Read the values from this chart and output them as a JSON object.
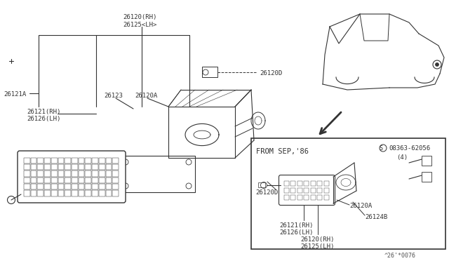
{
  "bg_color": "#ffffff",
  "line_color": "#333333",
  "text_color": "#333333",
  "footer_text": "^26'*0076",
  "labels": {
    "top_combo": "26120(RH)\n26125<LH>",
    "part_26121A": "26121A",
    "part_26121_rh": "26121(RH)",
    "part_26126_lh": "26126(LH)",
    "part_26123": "26123",
    "part_26120A": "26120A",
    "part_26120D_main": "26120D",
    "from_sep86": "FROM SEP,'86",
    "s_number": "S 08363-62056",
    "paren_4": "(4)",
    "inset_26120D": "26120D",
    "inset_26121_rh": "26121(RH)",
    "inset_26126_lh": "26126(LH)",
    "inset_26120A": "26120A",
    "inset_26124B": "26124B",
    "inset_26120_rh": "26120(RH)",
    "inset_26125_lh": "26125(LH)"
  },
  "fontsize_small": 6.5,
  "fontsize_medium": 7.5
}
